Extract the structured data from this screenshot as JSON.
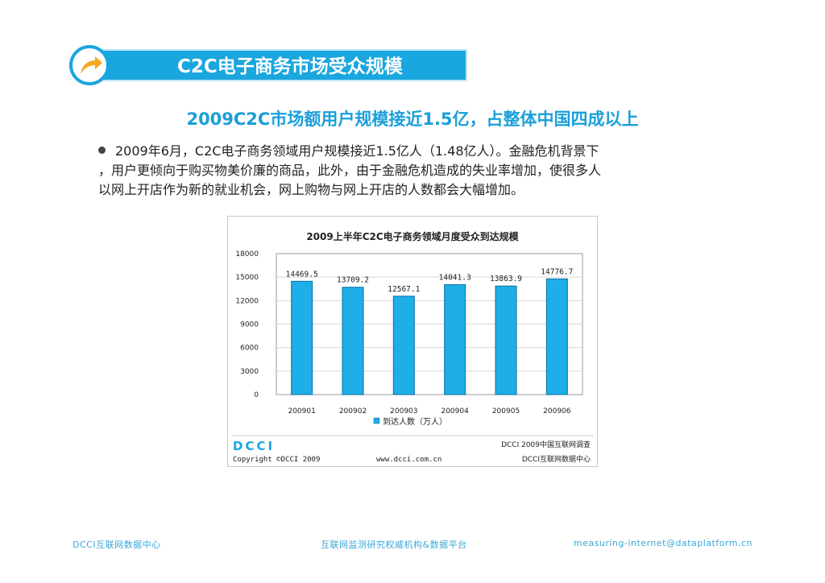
{
  "banner": {
    "title": "C2C电子商务市场受众规模",
    "icon": "curved-arrow-icon",
    "accent": "#1aa6de",
    "icon_color": "#f5a623"
  },
  "headline": "2009C2C市场额用户规模接近1.5亿，占整体中国四成以上",
  "body": {
    "lines": [
      "2009年6月，C2C电子商务领域用户规模接近1.5亿人（1.48亿人）。金融危机背景下",
      "，用户更倾向于购买物美价廉的商品，此外，由于金融危机造成的失业率增加，使很多人",
      "以网上开店作为新的就业机会，网上购物与网上开店的人数都会大幅增加。"
    ]
  },
  "chart_data": {
    "type": "bar",
    "title": "2009上半年C2C电子商务领域月度受众到达规模",
    "categories": [
      "200901",
      "200902",
      "200903",
      "200904",
      "200905",
      "200906"
    ],
    "series": [
      {
        "name": "到达人数（万人）",
        "values": [
          14469.5,
          13709.2,
          12567.1,
          14041.3,
          13863.9,
          14776.7
        ],
        "color": "#1eaee8"
      }
    ],
    "value_labels": [
      "14469.5",
      "13709.2",
      "12567.1",
      "14041.3",
      "13863.9",
      "14776.7"
    ],
    "ylim": [
      0,
      18000
    ],
    "yticks": [
      0,
      3000,
      6000,
      9000,
      12000,
      15000,
      18000
    ],
    "ytick_labels": [
      "0",
      "3000",
      "6000",
      "9000",
      "12000",
      "15000",
      "18000"
    ],
    "grid": true,
    "legend": "bottom"
  },
  "figure_footer": {
    "logo": "DCCI",
    "copyright": "Copyright ©DCCI 2009",
    "url": "www.dcci.com.cn",
    "survey": "DCCI 2009中国互联网调查",
    "center": "DCCI互联网数据中心"
  },
  "footer": {
    "left": "DCCI互联网数据中心",
    "center": "互联网监测研究权威机构&数据平台",
    "right": "measuring-internet@dataplatform.cn"
  }
}
